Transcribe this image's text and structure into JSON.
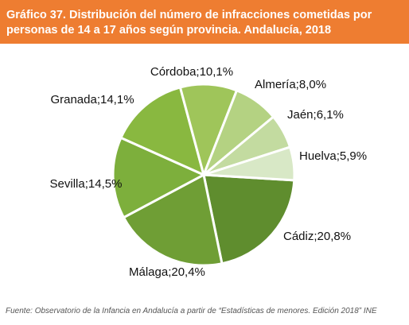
{
  "header": {
    "title": "Gráfico 37. Distribución del número de infracciones cometidas por personas de 14 a 17 años según provincia. Andalucía, 2018",
    "background": "#ee7d31"
  },
  "chart_data": {
    "type": "pie",
    "categories": [
      "Cádiz",
      "Málaga",
      "Sevilla",
      "Granada",
      "Córdoba",
      "Almería",
      "Jaén",
      "Huelva"
    ],
    "values": [
      20.8,
      20.4,
      14.5,
      14.1,
      10.1,
      8.0,
      6.1,
      5.9
    ],
    "labels": [
      "Cádiz;20,8%",
      "Málaga;20,4%",
      "Sevilla;14,5%",
      "Granada;14,1%",
      "Córdoba;10,1%",
      "Almería;8,0%",
      "Jaén;6,1%",
      "Huelva;5,9%"
    ],
    "colors": [
      "#5f8d2e",
      "#6f9e35",
      "#7daf3c",
      "#89b840",
      "#9fc55a",
      "#b4d282",
      "#c3dba0",
      "#d8e8c6"
    ],
    "title": "",
    "legend": "none"
  },
  "source": "Fuente: Observatorio de la Infancia en Andalucía a partir de “Estadísticas de menores. Edición 2018” INE"
}
